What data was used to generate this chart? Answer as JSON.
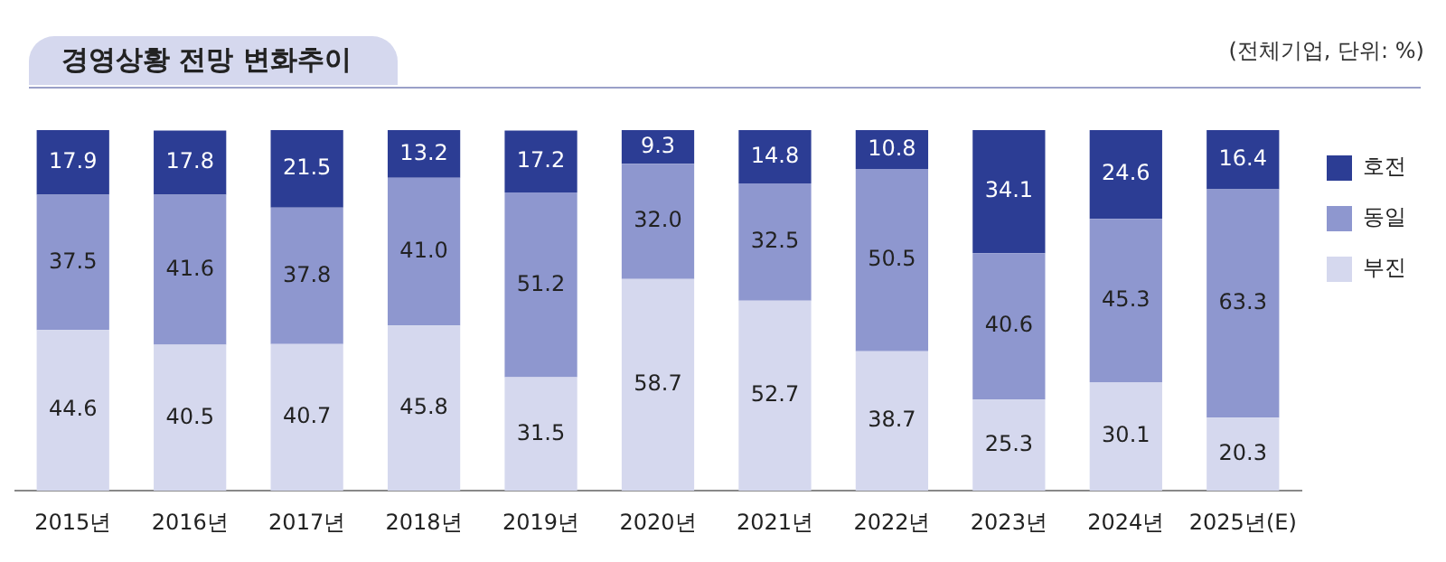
{
  "chart_data": {
    "type": "bar",
    "title": "경영상황 전망 변화추이",
    "annotations": [
      "(전체기업, 단위: %)"
    ],
    "categories": [
      "2015년",
      "2016년",
      "2017년",
      "2018년",
      "2019년",
      "2020년",
      "2021년",
      "2022년",
      "2023년",
      "2024년",
      "2025년(E)"
    ],
    "stacked": true,
    "legend": "right",
    "tick_labels": "x",
    "series": [
      {
        "name": "부진",
        "color": "#d5d8ee",
        "values": [
          44.6,
          40.5,
          40.7,
          45.8,
          31.5,
          58.7,
          52.7,
          38.7,
          25.3,
          30.1,
          20.3
        ],
        "value_labels": [
          "44.6",
          "40.5",
          "40.7",
          "45.8",
          "31.5",
          "58.7",
          "52.7",
          "38.7",
          "25.3",
          "30.1",
          "20.3"
        ]
      },
      {
        "name": "동일",
        "color": "#8e97cf",
        "values": [
          37.5,
          41.6,
          37.8,
          41.0,
          51.2,
          32.0,
          32.5,
          50.5,
          40.6,
          45.3,
          63.3
        ],
        "value_labels": [
          "37.5",
          "41.6",
          "37.8",
          "41.0",
          "51.2",
          "32.0",
          "32.5",
          "50.5",
          "40.6",
          "45.3",
          "63.3"
        ]
      },
      {
        "name": "호전",
        "color": "#2c3d94",
        "values": [
          17.9,
          17.8,
          21.5,
          13.2,
          17.2,
          9.3,
          14.8,
          10.8,
          34.1,
          24.6,
          16.4
        ],
        "value_labels": [
          "17.9",
          "17.8",
          "21.5",
          "13.2",
          "17.2",
          "9.3",
          "14.8",
          "10.8",
          "34.1",
          "24.6",
          "16.4"
        ]
      }
    ]
  }
}
